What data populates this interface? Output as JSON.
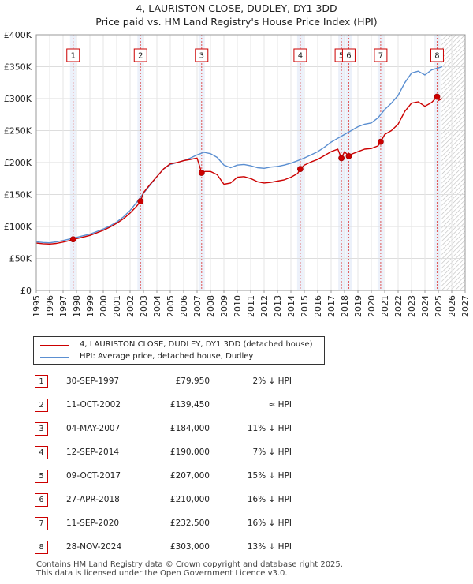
{
  "title_line1": "4, LAURISTON CLOSE, DUDLEY, DY1 3DD",
  "title_line2": "Price paid vs. HM Land Registry's House Price Index (HPI)",
  "legend": {
    "property_label": "4, LAURISTON CLOSE, DUDLEY, DY1 3DD (detached house)",
    "hpi_label": "HPI: Average price, detached house, Dudley"
  },
  "colors": {
    "property": "#cc0000",
    "hpi": "#5b8fd1",
    "shade": "#dce6f5",
    "marker_line": "#e05555"
  },
  "chart_data": {
    "type": "line",
    "title": "4, LAURISTON CLOSE, DUDLEY, DY1 3DD",
    "subtitle": "Price paid vs. HM Land Registry's House Price Index (HPI)",
    "xlabel": "",
    "ylabel": "",
    "xlim": [
      1995,
      2027
    ],
    "ylim": [
      0,
      400000
    ],
    "y_ticks": [
      0,
      50000,
      100000,
      150000,
      200000,
      250000,
      300000,
      350000,
      400000
    ],
    "y_tick_labels": [
      "£0",
      "£50K",
      "£100K",
      "£150K",
      "£200K",
      "£250K",
      "£300K",
      "£350K",
      "£400K"
    ],
    "x_ticks": [
      1995,
      1996,
      1997,
      1998,
      1999,
      2000,
      2001,
      2002,
      2003,
      2004,
      2005,
      2006,
      2007,
      2008,
      2009,
      2010,
      2011,
      2012,
      2013,
      2014,
      2015,
      2016,
      2017,
      2018,
      2019,
      2020,
      2021,
      2022,
      2023,
      2024,
      2025,
      2026,
      2027
    ],
    "x_tick_labels": [
      "1995",
      "1996",
      "1997",
      "1998",
      "1999",
      "2000",
      "2001",
      "2002",
      "2003",
      "2004",
      "2005",
      "2006",
      "2007",
      "2008",
      "2009",
      "2010",
      "2011",
      "2012",
      "2013",
      "2014",
      "2015",
      "2016",
      "2017",
      "2018",
      "2019",
      "2020",
      "2021",
      "2022",
      "2023",
      "2024",
      "2025",
      "2026",
      "2027"
    ],
    "grid": true,
    "legend_position": "below",
    "projection_start": 2025.25,
    "series": [
      {
        "name": "HPI: Average price, detached house, Dudley",
        "x": [
          1995.0,
          1995.5,
          1996.0,
          1996.5,
          1997.0,
          1997.5,
          1998.0,
          1998.5,
          1999.0,
          1999.5,
          2000.0,
          2000.5,
          2001.0,
          2001.5,
          2002.0,
          2002.5,
          2003.0,
          2003.5,
          2004.0,
          2004.5,
          2005.0,
          2005.5,
          2006.0,
          2006.5,
          2007.0,
          2007.5,
          2008.0,
          2008.5,
          2009.0,
          2009.5,
          2010.0,
          2010.5,
          2011.0,
          2011.5,
          2012.0,
          2012.5,
          2013.0,
          2013.5,
          2014.0,
          2014.5,
          2015.0,
          2015.5,
          2016.0,
          2016.5,
          2017.0,
          2017.5,
          2018.0,
          2018.5,
          2019.0,
          2019.5,
          2020.0,
          2020.5,
          2021.0,
          2021.5,
          2022.0,
          2022.5,
          2023.0,
          2023.5,
          2024.0,
          2024.5,
          2025.0,
          2025.3
        ],
        "y": [
          76000,
          75000,
          74500,
          76000,
          78000,
          80500,
          83000,
          85500,
          88000,
          92000,
          96000,
          101000,
          107000,
          115000,
          125000,
          138000,
          152000,
          165000,
          178000,
          190000,
          197000,
          200000,
          203000,
          207000,
          212000,
          216000,
          214000,
          208000,
          196000,
          192000,
          196000,
          197000,
          195000,
          192000,
          191000,
          193000,
          194000,
          196000,
          199000,
          203000,
          207000,
          212000,
          217000,
          224000,
          232000,
          238000,
          244000,
          250000,
          256000,
          260000,
          262000,
          270000,
          283000,
          293000,
          305000,
          325000,
          340000,
          343000,
          337000,
          345000,
          348000,
          350000
        ]
      },
      {
        "name": "4, LAURISTON CLOSE, DUDLEY, DY1 3DD (detached house)",
        "x": [
          1995.0,
          1995.5,
          1996.0,
          1996.5,
          1997.0,
          1997.5,
          1997.75,
          1998.0,
          1998.5,
          1999.0,
          1999.5,
          2000.0,
          2000.5,
          2001.0,
          2001.5,
          2002.0,
          2002.5,
          2002.78,
          2003.0,
          2003.5,
          2004.0,
          2004.5,
          2005.0,
          2005.5,
          2006.0,
          2006.5,
          2007.0,
          2007.34,
          2007.6,
          2008.0,
          2008.5,
          2009.0,
          2009.5,
          2010.0,
          2010.5,
          2011.0,
          2011.5,
          2012.0,
          2012.5,
          2013.0,
          2013.5,
          2014.0,
          2014.5,
          2014.7,
          2015.0,
          2015.5,
          2016.0,
          2016.5,
          2017.0,
          2017.5,
          2017.77,
          2018.0,
          2018.32,
          2018.5,
          2019.0,
          2019.5,
          2020.0,
          2020.5,
          2020.7,
          2021.0,
          2021.5,
          2022.0,
          2022.5,
          2023.0,
          2023.5,
          2024.0,
          2024.5,
          2024.91,
          2025.0,
          2025.3
        ],
        "y": [
          74000,
          73000,
          72500,
          73500,
          75500,
          78000,
          79950,
          81000,
          83500,
          86000,
          90000,
          94000,
          99000,
          105000,
          112000,
          121000,
          132000,
          139450,
          153000,
          166000,
          178000,
          190000,
          198000,
          200000,
          203000,
          205000,
          207000,
          184000,
          186000,
          186000,
          181000,
          166000,
          168000,
          177000,
          178000,
          175000,
          170000,
          168000,
          169000,
          171000,
          173000,
          177000,
          183000,
          190000,
          196000,
          201000,
          205000,
          211000,
          217000,
          221000,
          207000,
          217000,
          210000,
          213000,
          217000,
          221000,
          222000,
          226000,
          232500,
          244000,
          250000,
          260000,
          280000,
          293000,
          295000,
          288000,
          294000,
          303000,
          297000,
          300000
        ]
      }
    ],
    "sales": [
      {
        "label": "1",
        "date": "30-SEP-1997",
        "x": 1997.75,
        "price": 79950,
        "price_text": "£79,950",
        "hpi_text": "2% ↓ HPI"
      },
      {
        "label": "2",
        "date": "11-OCT-2002",
        "x": 2002.78,
        "price": 139450,
        "price_text": "£139,450",
        "hpi_text": "≈ HPI"
      },
      {
        "label": "3",
        "date": "04-MAY-2007",
        "x": 2007.34,
        "price": 184000,
        "price_text": "£184,000",
        "hpi_text": "11% ↓ HPI"
      },
      {
        "label": "4",
        "date": "12-SEP-2014",
        "x": 2014.7,
        "price": 190000,
        "price_text": "£190,000",
        "hpi_text": "7% ↓ HPI"
      },
      {
        "label": "5",
        "date": "09-OCT-2017",
        "x": 2017.77,
        "price": 207000,
        "price_text": "£207,000",
        "hpi_text": "15% ↓ HPI"
      },
      {
        "label": "6",
        "date": "27-APR-2018",
        "x": 2018.32,
        "price": 210000,
        "price_text": "£210,000",
        "hpi_text": "16% ↓ HPI"
      },
      {
        "label": "7",
        "date": "11-SEP-2020",
        "x": 2020.7,
        "price": 232500,
        "price_text": "£232,500",
        "hpi_text": "16% ↓ HPI"
      },
      {
        "label": "8",
        "date": "28-NOV-2024",
        "x": 2024.91,
        "price": 303000,
        "price_text": "£303,000",
        "hpi_text": "13% ↓ HPI"
      }
    ]
  },
  "footer_line1": "Contains HM Land Registry data © Crown copyright and database right 2025.",
  "footer_line2": "This data is licensed under the Open Government Licence v3.0."
}
